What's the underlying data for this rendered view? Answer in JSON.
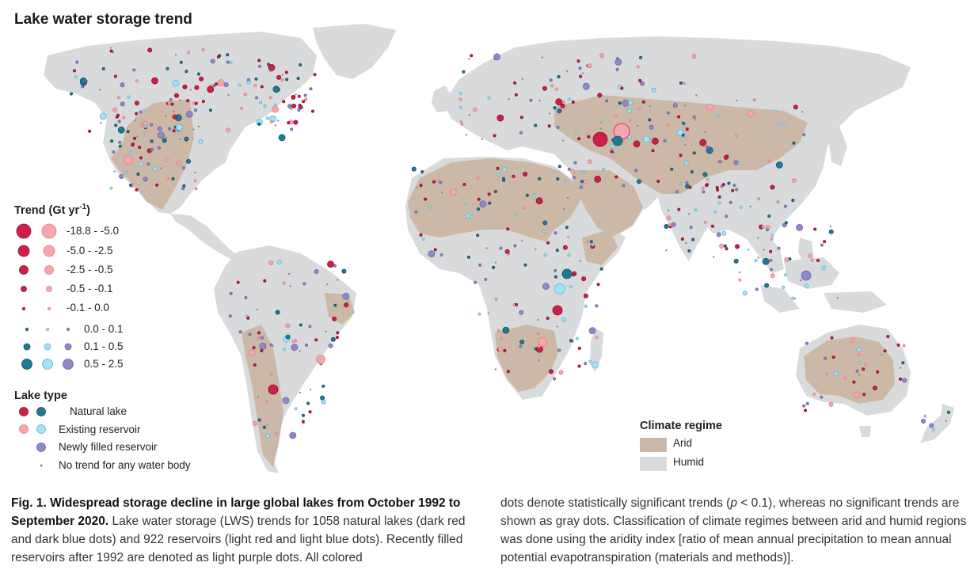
{
  "map": {
    "title": "Lake water storage trend",
    "colors": {
      "arid": "#cbb8a6",
      "humid": "#d9dadb",
      "ocean": "#ffffff",
      "natural_decline": "#cc1f4a",
      "reservoir_decline": "#f6a6ad",
      "natural_increase": "#1f7a95",
      "reservoir_increase": "#a5e0f5",
      "newly_filled": "#8f88c9",
      "no_trend": "#8c8c8c"
    }
  },
  "trend_legend": {
    "title": "Trend (Gt yr",
    "title_sup": "-1",
    "title_close": ")",
    "decline_ranges": [
      "-18.8 - -5.0",
      "-5.0 - -2.5",
      "-2.5 - -0.5",
      "-0.5 - -0.1",
      "-0.1 - 0.0"
    ],
    "increase_ranges": [
      "0.0 - 0.1",
      "0.1 - 0.5",
      "0.5 - 2.5"
    ]
  },
  "lake_type_legend": {
    "title": "Lake type",
    "items": [
      "Natural lake",
      "Existing reservoir",
      "Newly filled reservoir",
      "No trend for any water body"
    ]
  },
  "climate_legend": {
    "title": "Climate regime",
    "items": [
      "Arid",
      "Humid"
    ]
  },
  "caption": {
    "lead": "Fig. 1. Widespread storage decline in large global lakes from October 1992 to September 2020.",
    "left_text": " Lake water storage (LWS) trends for 1058 natural lakes (dark red and dark blue dots) and 922 reservoirs (light red and light blue dots). Recently filled reservoirs after 1992 are denoted as light purple dots. All colored",
    "right_text_1": "dots denote statistically significant trends (",
    "right_p": "p",
    "right_text_2": " < 0.1), whereas no significant trends are shown as gray dots. Classification of climate regimes between arid and humid regions was done using the aridity index [ratio of mean annual precipitation to mean annual potential evapotranspiration (materials and methods)]."
  }
}
